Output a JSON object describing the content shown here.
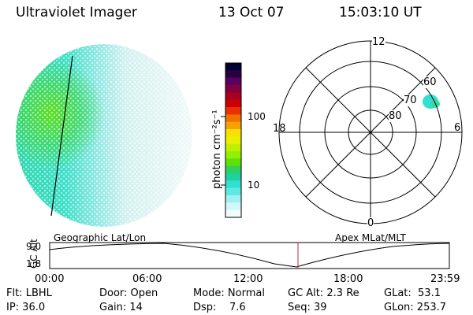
{
  "header": {
    "title": "Ultraviolet Imager",
    "date": "13 Oct 07",
    "time": "15:03:10 UT"
  },
  "colorbar": {
    "label": "photon cm⁻²s⁻¹",
    "ticks": [
      "100",
      "10"
    ],
    "colors": [
      "#000033",
      "#2a0040",
      "#5a0060",
      "#800040",
      "#a80020",
      "#cc0000",
      "#e83000",
      "#f07000",
      "#f8a000",
      "#f8e000",
      "#e8f000",
      "#c0f000",
      "#90f000",
      "#60e000",
      "#30d060",
      "#20d0a0",
      "#30e0d0",
      "#60e8e0",
      "#a0f0f0",
      "#d0f8f8",
      "#f0fcfc"
    ]
  },
  "polar_plot": {
    "mlt_labels": [
      "12",
      "18",
      "6",
      "0"
    ],
    "lat_labels": [
      "60",
      "70",
      "80"
    ]
  },
  "track": {
    "left_label": "Geographic Lat/Lon",
    "right_label": "Apex MLat/MLT",
    "axis_label": "GC Alt",
    "y_ticks": [
      "9.0",
      "1.8"
    ],
    "x_ticks": [
      "00:00",
      "06:00",
      "12:00",
      "18:00",
      "23:59"
    ]
  },
  "status": {
    "flt": "Flt: LBHL",
    "ip": "IP: 36.0",
    "door": "Door: Open",
    "gain": "Gain: 14",
    "mode": "Mode: Normal",
    "dsp": "Dsp:    7.6",
    "gcalt": "GC Alt: 2.3 Re",
    "seq": "Seq: 39",
    "glat": "GLat:  53.1",
    "glon": "GLon: 253.7"
  }
}
